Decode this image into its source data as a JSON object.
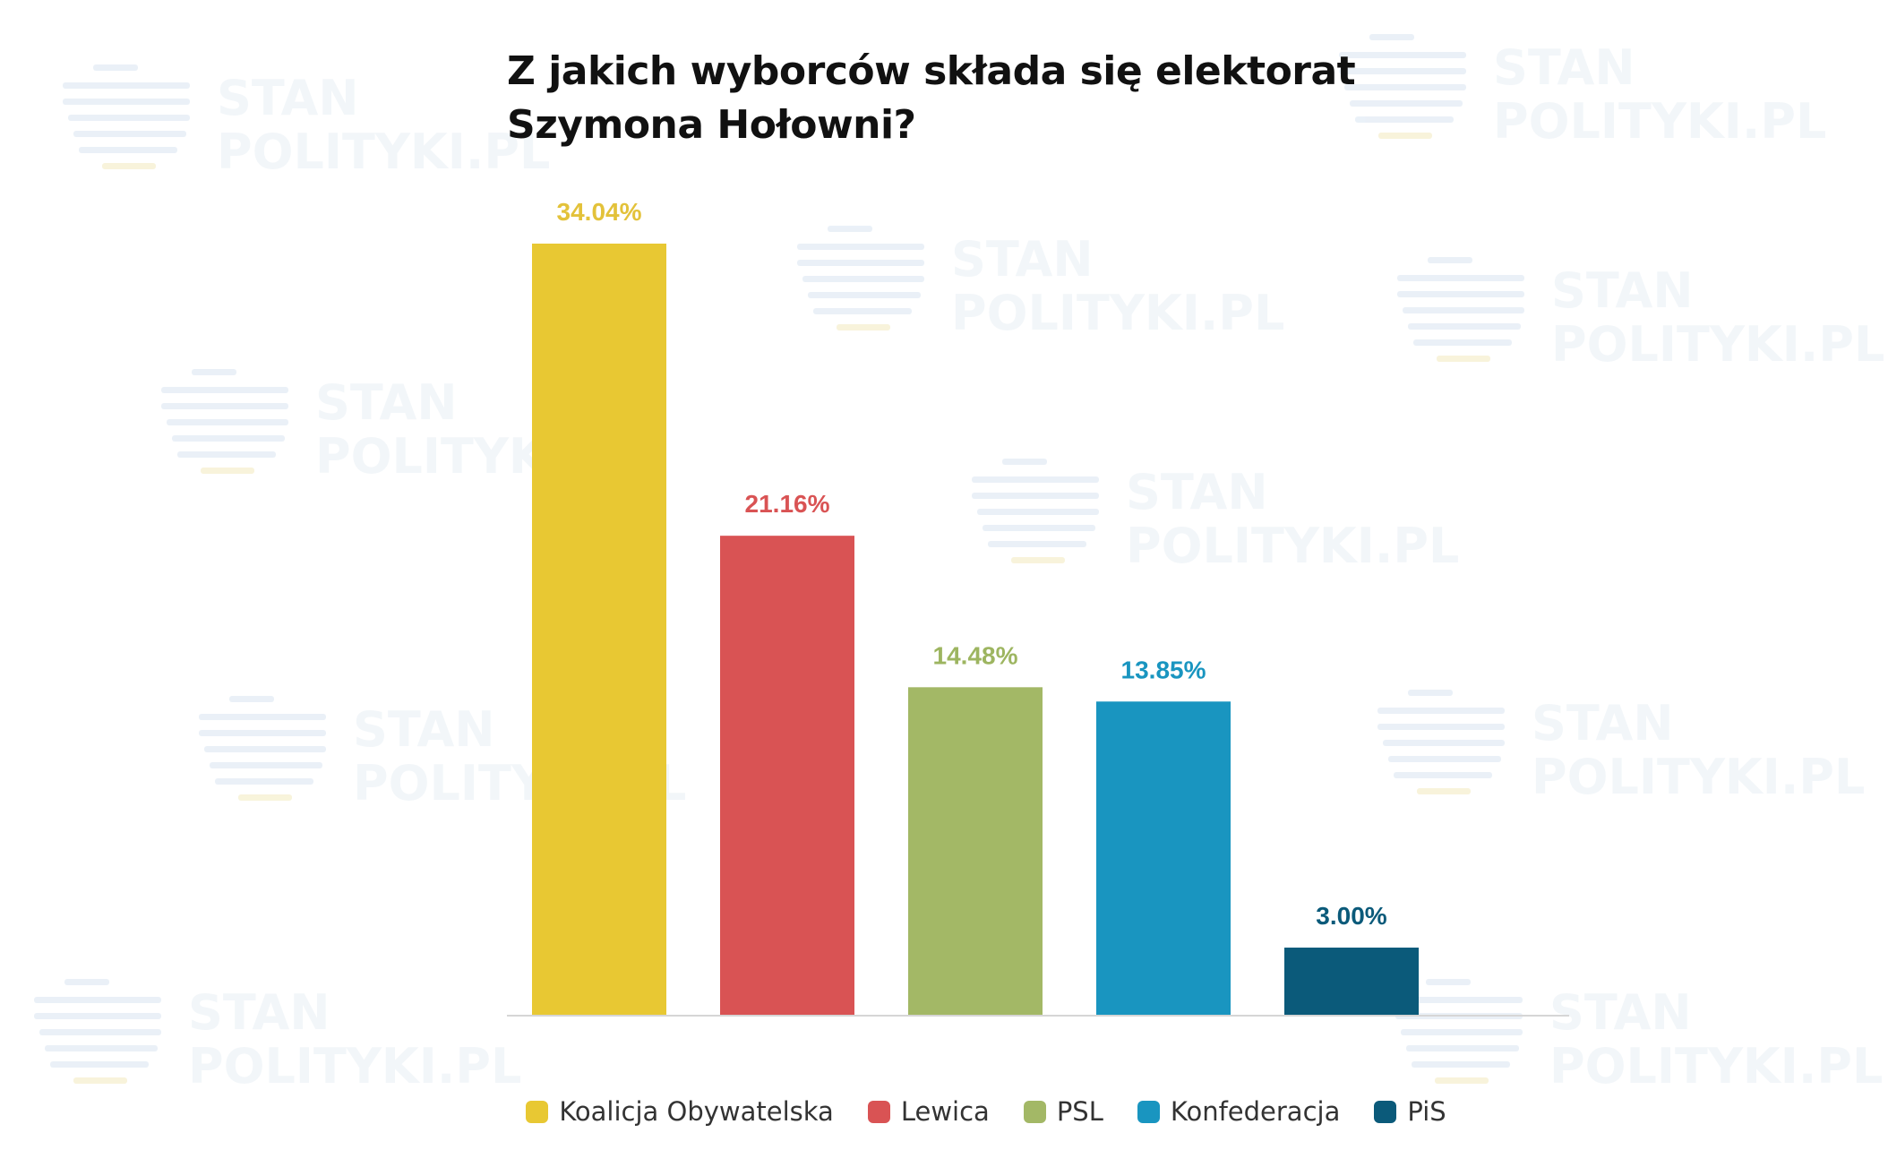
{
  "watermark": {
    "line1": "STAN",
    "line2": "POLITYKI.PL"
  },
  "chart_data": {
    "type": "bar",
    "title": "Z jakich wyborców składa się elektorat Szymona Hołowni?",
    "xlabel": "",
    "ylabel": "",
    "ylim": [
      0,
      34.04
    ],
    "grid": false,
    "legend_position": "bottom",
    "categories": [
      "Koalicja Obywatelska",
      "Lewica",
      "PSL",
      "Konfederacja",
      "PiS"
    ],
    "values": [
      34.04,
      21.16,
      14.48,
      13.85,
      3.0
    ],
    "value_labels": [
      "34.04%",
      "21.16%",
      "14.48%",
      "13.85%",
      "3.00%"
    ],
    "colors": [
      "#E8C833",
      "#D95354",
      "#A3B866",
      "#1995C0",
      "#0B5A7A"
    ],
    "label_colors": [
      "#E3C23A",
      "#D95354",
      "#9DB560",
      "#1995C0",
      "#0B5A7A"
    ]
  }
}
